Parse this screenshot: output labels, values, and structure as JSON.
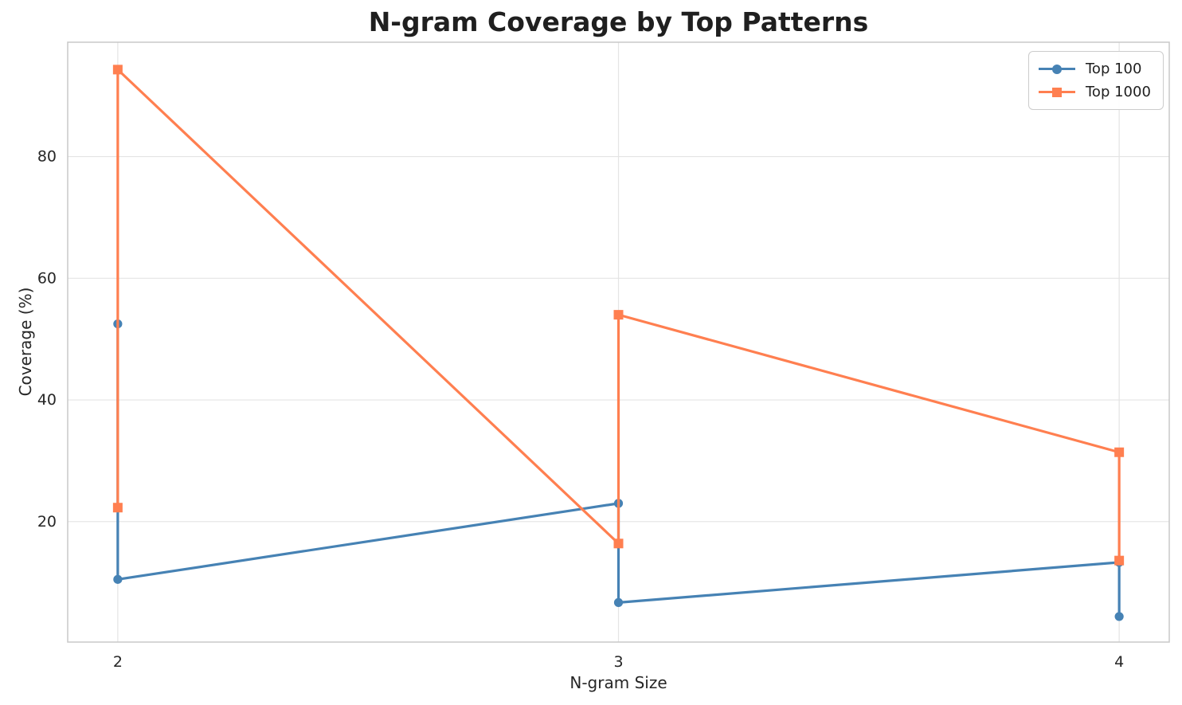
{
  "chart_data": {
    "type": "line",
    "title": "N-gram Coverage by Top Patterns",
    "xlabel": "N-gram Size",
    "ylabel": "Coverage (%)",
    "x_ticks": [
      2,
      3,
      4
    ],
    "y_ticks": [
      20,
      40,
      60,
      80
    ],
    "xlim": [
      1.9,
      4.1
    ],
    "ylim": [
      0.2,
      98.8
    ],
    "grid": true,
    "legend_position": "upper right",
    "colors": {
      "top100": "#4682B4",
      "top1000": "#FF7F50",
      "gridline": "#e4e4e4",
      "spine": "#c8c8c8",
      "tick_text": "#262626"
    },
    "series": [
      {
        "name": "Top 100",
        "color": "#4682B4",
        "marker": "circle",
        "points": [
          [
            2,
            52.5
          ],
          [
            2,
            10.5
          ],
          [
            3,
            23.0
          ],
          [
            3,
            6.7
          ],
          [
            4,
            13.3
          ],
          [
            4,
            4.4
          ]
        ]
      },
      {
        "name": "Top 1000",
        "color": "#FF7F50",
        "marker": "square",
        "points": [
          [
            2,
            22.3
          ],
          [
            2,
            94.3
          ],
          [
            3,
            16.4
          ],
          [
            3,
            54.0
          ],
          [
            4,
            31.4
          ],
          [
            4,
            13.6
          ]
        ]
      }
    ]
  }
}
